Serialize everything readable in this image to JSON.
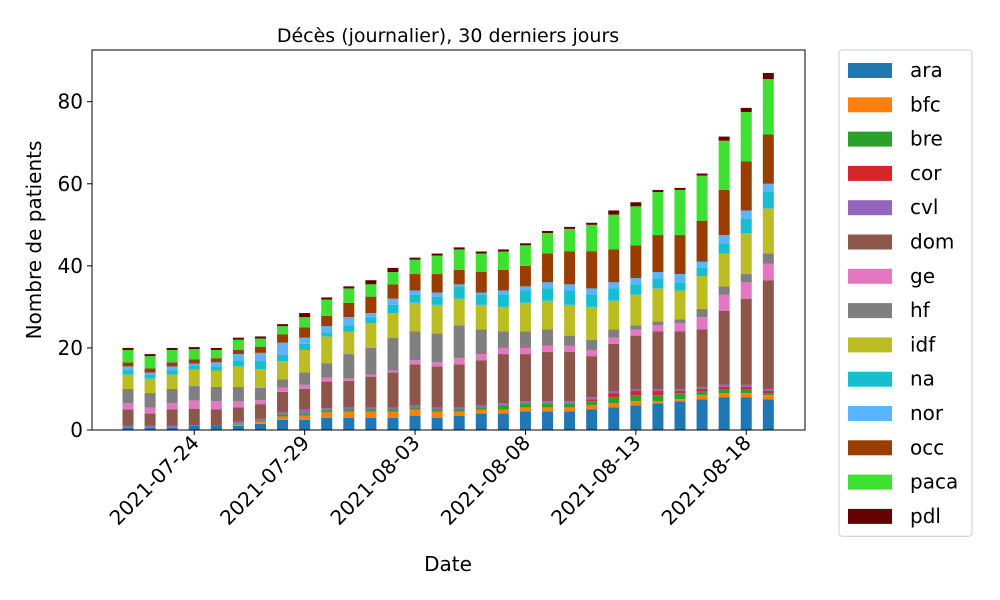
{
  "chart_data": {
    "type": "bar",
    "stacked": true,
    "title": "Décès (journalier), 30 derniers jours",
    "xlabel": "Date",
    "ylabel": "Nombre de patients",
    "categories": [
      "2021-07-21",
      "2021-07-22",
      "2021-07-23",
      "2021-07-24",
      "2021-07-25",
      "2021-07-26",
      "2021-07-27",
      "2021-07-28",
      "2021-07-29",
      "2021-07-30",
      "2021-07-31",
      "2021-08-01",
      "2021-08-02",
      "2021-08-03",
      "2021-08-04",
      "2021-08-05",
      "2021-08-06",
      "2021-08-07",
      "2021-08-08",
      "2021-08-09",
      "2021-08-10",
      "2021-08-11",
      "2021-08-12",
      "2021-08-13",
      "2021-08-14",
      "2021-08-15",
      "2021-08-16",
      "2021-08-17",
      "2021-08-18",
      "2021-08-19"
    ],
    "xticks": [
      "2021-07-24",
      "2021-07-29",
      "2021-08-03",
      "2021-08-08",
      "2021-08-13",
      "2021-08-18"
    ],
    "ylim": [
      0,
      92.6
    ],
    "yticks": [
      0,
      20,
      40,
      60,
      80
    ],
    "grid": false,
    "legend": "outside right",
    "series": [
      {
        "name": "ara",
        "color": "#1f77b4",
        "values": [
          0.5,
          0.5,
          0.5,
          1,
          1,
          1,
          1.5,
          2.5,
          2.5,
          3,
          3,
          3,
          3,
          3.5,
          3,
          3.5,
          4,
          4,
          4.5,
          4.5,
          4.5,
          5,
          5.5,
          6,
          6.5,
          7,
          7.5,
          8,
          8,
          7.5
        ]
      },
      {
        "name": "bfc",
        "color": "#ff7f0e",
        "values": [
          0,
          0,
          0,
          0,
          0,
          0.3,
          0.5,
          0.8,
          1,
          1.3,
          1.5,
          1.5,
          1.5,
          1.5,
          1.5,
          1,
          1,
          1,
          1,
          1,
          1,
          1,
          1,
          1,
          0.5,
          0.5,
          1,
          1,
          1,
          1
        ]
      },
      {
        "name": "bre",
        "color": "#2ca02c",
        "values": [
          0.2,
          0.2,
          0.2,
          0.2,
          0,
          0.2,
          0.3,
          0.5,
          0.5,
          0.5,
          0.5,
          0.5,
          0.5,
          0.5,
          0.5,
          0.5,
          0.5,
          1,
          1,
          1,
          1,
          1,
          1.5,
          1.5,
          1.5,
          1.5,
          1,
          1,
          1,
          0.5
        ]
      },
      {
        "name": "cor",
        "color": "#d62728",
        "values": [
          0,
          0,
          0,
          0,
          0,
          0,
          0,
          0,
          0,
          0,
          0,
          0,
          0,
          0,
          0,
          0,
          0,
          0,
          0,
          0,
          0,
          0.5,
          1,
          1,
          1,
          0.5,
          0.5,
          0.5,
          0.5,
          0.5
        ]
      },
      {
        "name": "cvl",
        "color": "#9467bd",
        "values": [
          0.3,
          0.3,
          0.3,
          0,
          0,
          0.5,
          0.5,
          0.5,
          1,
          0.5,
          0.5,
          0.5,
          0.5,
          0.5,
          0.5,
          0.5,
          0.5,
          0.5,
          0.5,
          0.5,
          0.5,
          0.5,
          0.5,
          0.5,
          0.5,
          0.5,
          0.5,
          0.5,
          0.5,
          0.5
        ]
      },
      {
        "name": "dom",
        "color": "#8c564b",
        "values": [
          4,
          3,
          4,
          4,
          4,
          3.5,
          3.5,
          5,
          5,
          6.5,
          6.5,
          7.5,
          8.5,
          10,
          10,
          10.5,
          11,
          12,
          11.5,
          12,
          12,
          10,
          11.5,
          13,
          14,
          14,
          14,
          18,
          21,
          26.5
        ]
      },
      {
        "name": "ge",
        "color": "#e377c2",
        "values": [
          1.5,
          1.5,
          1.5,
          2,
          2,
          1.5,
          1,
          1,
          1,
          1,
          0.5,
          0.5,
          0.5,
          1,
          1,
          1.5,
          1.5,
          1.5,
          1.5,
          1.5,
          1.5,
          1.5,
          1.5,
          1.5,
          1.5,
          2,
          3,
          4,
          4,
          4
        ]
      },
      {
        "name": "hf",
        "color": "#7f7f7f",
        "values": [
          3.5,
          3.5,
          3.5,
          3.5,
          3.5,
          3.5,
          3,
          2,
          3,
          3.5,
          6,
          6.5,
          8,
          7,
          7,
          8,
          6,
          4,
          4,
          4,
          2.5,
          2.5,
          2,
          1,
          1,
          1,
          2,
          2,
          2,
          2.5
        ]
      },
      {
        "name": "idf",
        "color": "#bcbd22",
        "values": [
          3.5,
          3.5,
          3.5,
          4,
          4,
          5,
          4.5,
          4.5,
          5.5,
          6.5,
          5.5,
          6,
          6,
          7,
          7,
          6.5,
          6,
          6,
          7,
          7,
          7.5,
          8,
          7,
          7.5,
          8,
          7,
          8,
          8,
          10,
          11
        ]
      },
      {
        "name": "na",
        "color": "#17becf",
        "values": [
          1,
          1,
          1,
          1,
          1,
          1.5,
          2,
          1.5,
          1.5,
          1,
          1.5,
          1.5,
          2,
          2,
          2,
          3,
          2.5,
          3,
          3,
          3,
          3.5,
          3,
          3,
          2.5,
          2.5,
          2,
          2,
          2.5,
          3.5,
          4
        ]
      },
      {
        "name": "nor",
        "color": "#5ab4ff",
        "values": [
          1,
          0.5,
          1,
          0.5,
          1,
          1.5,
          2,
          3,
          1.5,
          1.5,
          2,
          1,
          1.5,
          1,
          1,
          0.5,
          0.5,
          1,
          1,
          1.5,
          1.5,
          1.5,
          1.5,
          1.5,
          1.5,
          2,
          1.5,
          2,
          2,
          2
        ]
      },
      {
        "name": "occ",
        "color": "#993d00",
        "values": [
          1,
          1,
          1,
          1,
          1,
          1,
          1.5,
          2,
          2.5,
          2.5,
          3.5,
          4,
          3.5,
          4,
          4.5,
          3.5,
          5,
          5,
          5,
          7,
          8,
          9,
          8,
          8,
          9,
          9.5,
          10,
          11,
          12,
          12
        ]
      },
      {
        "name": "paca",
        "color": "#3ee032",
        "values": [
          3,
          3,
          3,
          2.5,
          2,
          2.5,
          2,
          2,
          2.5,
          4,
          3.5,
          3,
          3,
          3.5,
          4.5,
          5,
          4.5,
          4.5,
          5,
          5,
          5.5,
          6.5,
          8.5,
          9.5,
          10.5,
          11,
          11,
          12,
          12,
          13.5
        ]
      },
      {
        "name": "pdl",
        "color": "#650000",
        "values": [
          0.5,
          0.5,
          0.5,
          0.5,
          0.5,
          0.5,
          0.5,
          0.5,
          1,
          0.5,
          0.5,
          1,
          1,
          0.5,
          0.5,
          0.5,
          0.5,
          0.5,
          0.5,
          0.5,
          0.5,
          0.5,
          1,
          1,
          0.5,
          0.5,
          0.5,
          1,
          1,
          1.5
        ]
      }
    ]
  }
}
